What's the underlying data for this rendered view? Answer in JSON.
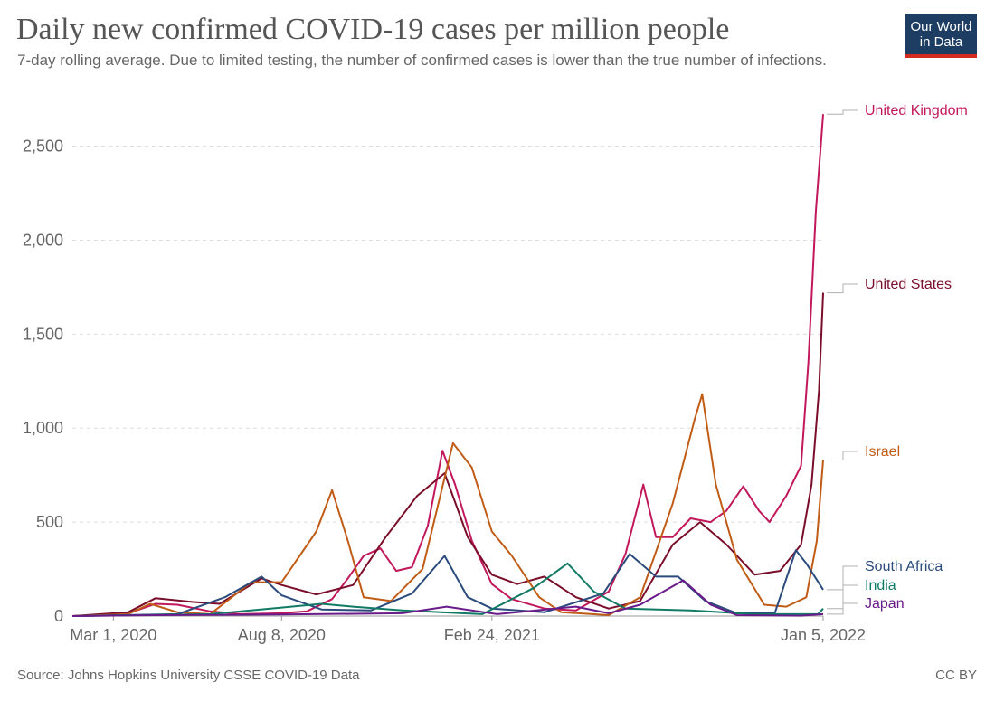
{
  "header": {
    "title": "Daily new confirmed COVID-19 cases per million people",
    "subtitle": "7-day rolling average. Due to limited testing, the number of confirmed cases is lower than the true number of infections.",
    "logo_line1": "Our World",
    "logo_line2": "in Data"
  },
  "footer": {
    "source": "Source: Johns Hopkins University CSSE COVID-19 Data",
    "license": "CC BY"
  },
  "chart_data": {
    "type": "line",
    "title": "Daily new confirmed COVID-19 cases per million people",
    "subtitle": "7-day rolling average. Due to limited testing, the number of confirmed cases is lower than the true number of infections.",
    "xlabel": "",
    "ylabel": "",
    "x_range": [
      "2020-01-22",
      "2022-01-05"
    ],
    "ylim": [
      0,
      2700
    ],
    "y_ticks": [
      0,
      500,
      1000,
      1500,
      2000,
      2500
    ],
    "y_tick_labels": [
      "0",
      "500",
      "1,000",
      "1,500",
      "2,000",
      "2,500"
    ],
    "x_ticks": [
      "2020-03-01",
      "2020-08-08",
      "2021-02-24",
      "2022-01-05"
    ],
    "x_tick_labels": [
      "Mar 1, 2020",
      "Aug 8, 2020",
      "Feb 24, 2021",
      "Jan 5, 2022"
    ],
    "grid": "horizontal dashed",
    "legend": "labels at right end of lines",
    "series": [
      {
        "name": "United Kingdom",
        "color": "#c2185b",
        "points": [
          [
            "2020-01-22",
            0
          ],
          [
            "2020-03-10",
            5
          ],
          [
            "2020-04-10",
            65
          ],
          [
            "2020-05-01",
            60
          ],
          [
            "2020-06-01",
            25
          ],
          [
            "2020-07-01",
            10
          ],
          [
            "2020-08-08",
            15
          ],
          [
            "2020-09-01",
            25
          ],
          [
            "2020-09-25",
            90
          ],
          [
            "2020-10-10",
            200
          ],
          [
            "2020-10-25",
            320
          ],
          [
            "2020-11-10",
            360
          ],
          [
            "2020-11-25",
            240
          ],
          [
            "2020-12-10",
            260
          ],
          [
            "2020-12-25",
            480
          ],
          [
            "2021-01-08",
            880
          ],
          [
            "2021-01-20",
            700
          ],
          [
            "2021-02-05",
            400
          ],
          [
            "2021-02-24",
            170
          ],
          [
            "2021-03-15",
            90
          ],
          [
            "2021-04-15",
            40
          ],
          [
            "2021-05-15",
            30
          ],
          [
            "2021-06-15",
            130
          ],
          [
            "2021-07-01",
            330
          ],
          [
            "2021-07-18",
            700
          ],
          [
            "2021-07-30",
            420
          ],
          [
            "2021-08-15",
            420
          ],
          [
            "2021-09-01",
            520
          ],
          [
            "2021-09-20",
            500
          ],
          [
            "2021-10-05",
            560
          ],
          [
            "2021-10-21",
            690
          ],
          [
            "2021-11-05",
            560
          ],
          [
            "2021-11-15",
            500
          ],
          [
            "2021-12-01",
            640
          ],
          [
            "2021-12-15",
            800
          ],
          [
            "2021-12-22",
            1350
          ],
          [
            "2021-12-29",
            2150
          ],
          [
            "2022-01-05",
            2670
          ]
        ]
      },
      {
        "name": "United States",
        "color": "#7a0e2a",
        "points": [
          [
            "2020-01-22",
            0
          ],
          [
            "2020-03-15",
            20
          ],
          [
            "2020-04-10",
            95
          ],
          [
            "2020-05-15",
            75
          ],
          [
            "2020-06-10",
            65
          ],
          [
            "2020-07-20",
            200
          ],
          [
            "2020-08-08",
            165
          ],
          [
            "2020-09-10",
            115
          ],
          [
            "2020-10-15",
            165
          ],
          [
            "2020-11-15",
            420
          ],
          [
            "2020-12-15",
            640
          ],
          [
            "2021-01-10",
            760
          ],
          [
            "2021-02-01",
            420
          ],
          [
            "2021-02-24",
            220
          ],
          [
            "2021-03-20",
            170
          ],
          [
            "2021-04-15",
            210
          ],
          [
            "2021-05-15",
            100
          ],
          [
            "2021-06-15",
            40
          ],
          [
            "2021-07-15",
            80
          ],
          [
            "2021-08-15",
            380
          ],
          [
            "2021-09-10",
            500
          ],
          [
            "2021-10-05",
            380
          ],
          [
            "2021-11-01",
            220
          ],
          [
            "2021-11-25",
            240
          ],
          [
            "2021-12-15",
            380
          ],
          [
            "2021-12-25",
            700
          ],
          [
            "2022-01-01",
            1200
          ],
          [
            "2022-01-05",
            1720
          ]
        ]
      },
      {
        "name": "Israel",
        "color": "#c15c17",
        "points": [
          [
            "2020-01-22",
            0
          ],
          [
            "2020-03-15",
            10
          ],
          [
            "2020-04-05",
            65
          ],
          [
            "2020-05-01",
            20
          ],
          [
            "2020-06-01",
            10
          ],
          [
            "2020-07-10",
            180
          ],
          [
            "2020-08-08",
            180
          ],
          [
            "2020-09-10",
            450
          ],
          [
            "2020-09-25",
            670
          ],
          [
            "2020-10-10",
            400
          ],
          [
            "2020-10-25",
            100
          ],
          [
            "2020-11-20",
            80
          ],
          [
            "2020-12-20",
            250
          ],
          [
            "2021-01-18",
            920
          ],
          [
            "2021-02-05",
            790
          ],
          [
            "2021-02-24",
            450
          ],
          [
            "2021-03-15",
            320
          ],
          [
            "2021-04-10",
            100
          ],
          [
            "2021-05-01",
            20
          ],
          [
            "2021-06-15",
            5
          ],
          [
            "2021-07-15",
            100
          ],
          [
            "2021-08-15",
            600
          ],
          [
            "2021-09-05",
            1050
          ],
          [
            "2021-09-12",
            1180
          ],
          [
            "2021-09-25",
            700
          ],
          [
            "2021-10-15",
            300
          ],
          [
            "2021-11-10",
            60
          ],
          [
            "2021-12-01",
            50
          ],
          [
            "2021-12-20",
            100
          ],
          [
            "2021-12-30",
            400
          ],
          [
            "2022-01-05",
            830
          ]
        ]
      },
      {
        "name": "South Africa",
        "color": "#2a4b7c",
        "points": [
          [
            "2020-01-22",
            0
          ],
          [
            "2020-05-01",
            10
          ],
          [
            "2020-06-15",
            100
          ],
          [
            "2020-07-20",
            210
          ],
          [
            "2020-08-08",
            110
          ],
          [
            "2020-09-15",
            35
          ],
          [
            "2020-11-01",
            30
          ],
          [
            "2020-12-10",
            120
          ],
          [
            "2021-01-10",
            320
          ],
          [
            "2021-02-01",
            100
          ],
          [
            "2021-02-24",
            40
          ],
          [
            "2021-04-15",
            20
          ],
          [
            "2021-06-10",
            120
          ],
          [
            "2021-07-05",
            330
          ],
          [
            "2021-07-30",
            210
          ],
          [
            "2021-08-20",
            210
          ],
          [
            "2021-09-15",
            80
          ],
          [
            "2021-10-15",
            15
          ],
          [
            "2021-11-20",
            15
          ],
          [
            "2021-12-10",
            350
          ],
          [
            "2021-12-20",
            280
          ],
          [
            "2022-01-05",
            140
          ]
        ]
      },
      {
        "name": "India",
        "color": "#117a65",
        "points": [
          [
            "2020-01-22",
            0
          ],
          [
            "2020-06-01",
            10
          ],
          [
            "2020-08-08",
            45
          ],
          [
            "2020-09-15",
            65
          ],
          [
            "2020-10-15",
            50
          ],
          [
            "2020-12-01",
            30
          ],
          [
            "2021-02-15",
            10
          ],
          [
            "2021-04-05",
            150
          ],
          [
            "2021-05-07",
            280
          ],
          [
            "2021-06-01",
            130
          ],
          [
            "2021-07-01",
            40
          ],
          [
            "2021-09-01",
            30
          ],
          [
            "2021-11-01",
            10
          ],
          [
            "2021-12-31",
            10
          ],
          [
            "2022-01-05",
            40
          ]
        ]
      },
      {
        "name": "Japan",
        "color": "#6a1b8a",
        "points": [
          [
            "2020-01-22",
            0
          ],
          [
            "2020-04-10",
            5
          ],
          [
            "2020-08-08",
            8
          ],
          [
            "2020-12-01",
            15
          ],
          [
            "2021-01-12",
            50
          ],
          [
            "2021-03-01",
            10
          ],
          [
            "2021-05-15",
            50
          ],
          [
            "2021-06-15",
            15
          ],
          [
            "2021-07-15",
            60
          ],
          [
            "2021-08-25",
            190
          ],
          [
            "2021-09-20",
            60
          ],
          [
            "2021-10-15",
            5
          ],
          [
            "2021-12-15",
            2
          ],
          [
            "2022-01-05",
            10
          ]
        ]
      }
    ]
  }
}
